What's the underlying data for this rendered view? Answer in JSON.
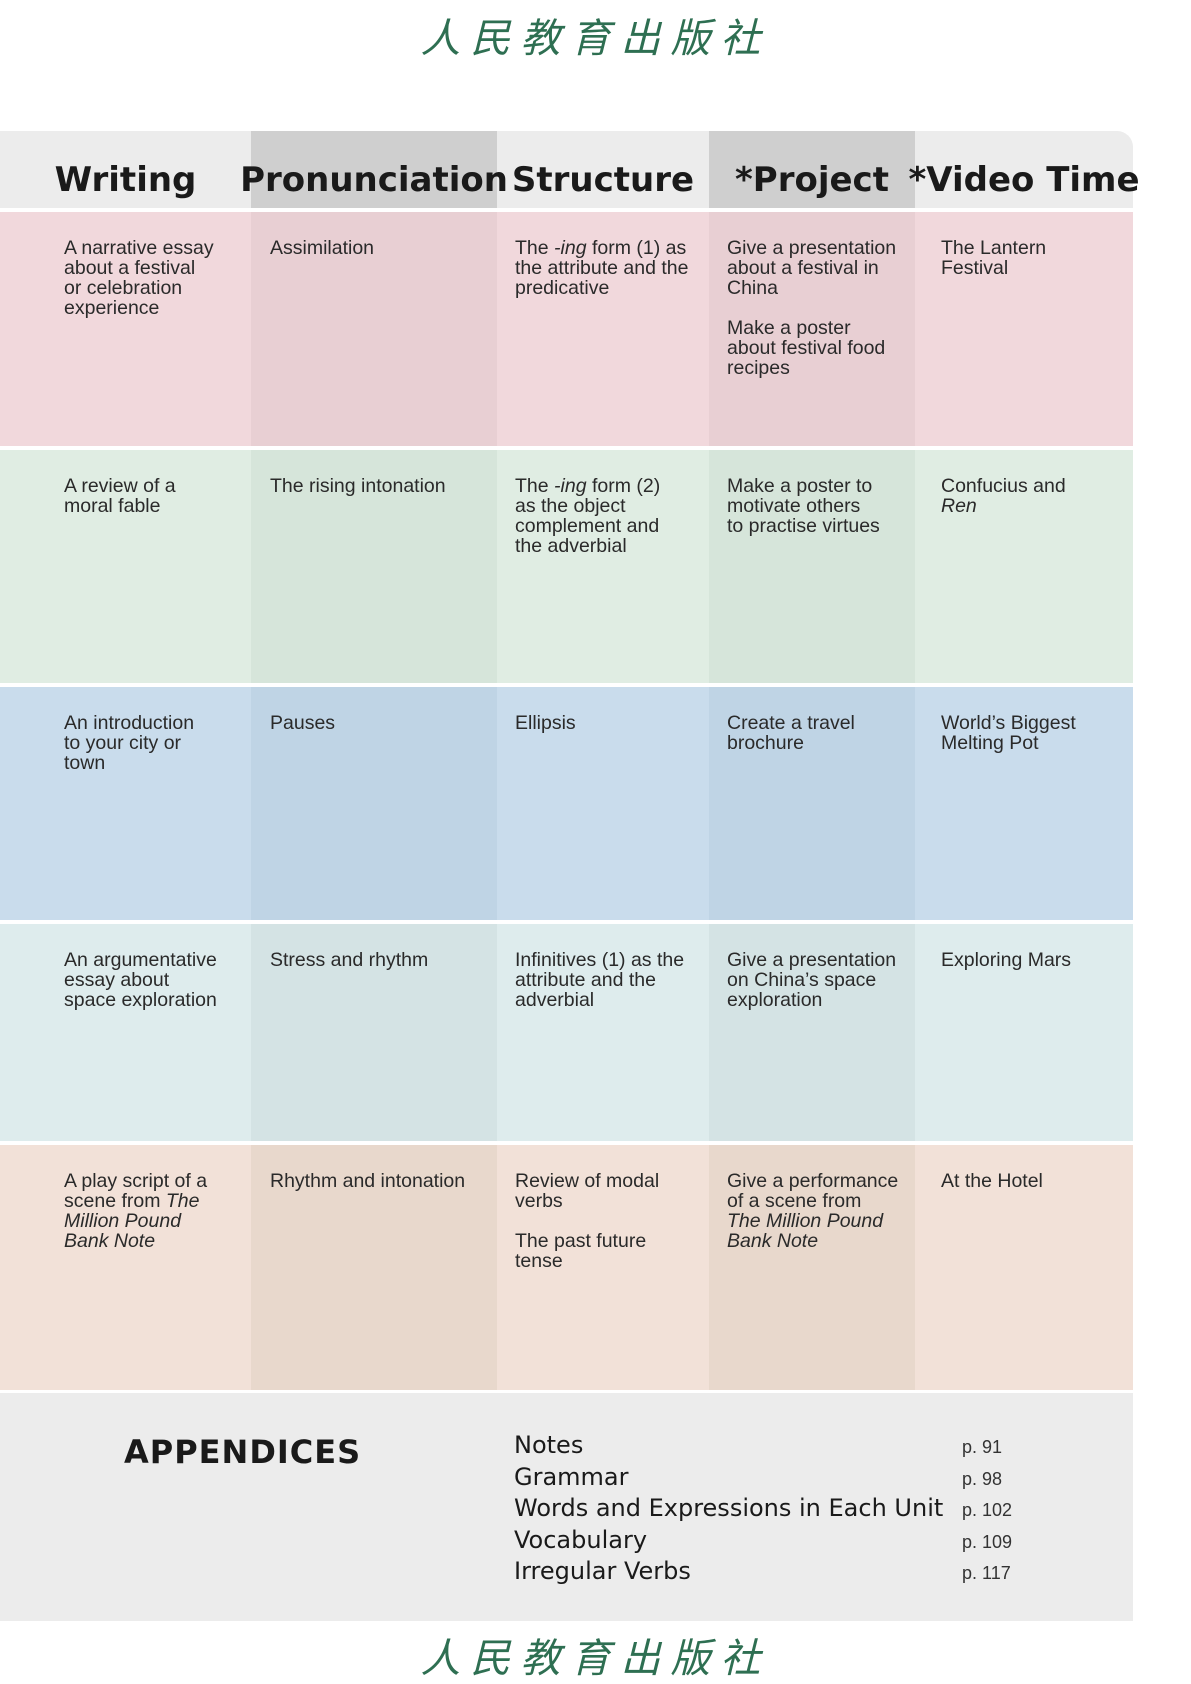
{
  "logo_text": "人民教育出版社",
  "header": [
    "Writing",
    "Pronunciation",
    "Structure",
    "*Project",
    "*Video Time"
  ],
  "colors": {
    "rows": [
      [
        "#f1d8dc",
        "#e8cfd3",
        "#f1d8dc",
        "#e8cfd3",
        "#f1d8dc"
      ],
      [
        "#e0ede3",
        "#d6e5da",
        "#e0ede3",
        "#d6e5da",
        "#e0ede3"
      ],
      [
        "#c9dcec",
        "#bfd4e5",
        "#c9dcec",
        "#bfd4e5",
        "#c9dcec"
      ],
      [
        "#deeced",
        "#d4e3e4",
        "#deeced",
        "#d4e3e4",
        "#deeced"
      ],
      [
        "#f2e1d8",
        "#e8d8cc",
        "#f2e1d8",
        "#e8d8cc",
        "#f2e1d8"
      ]
    ]
  },
  "rows": [
    {
      "cells": [
        [
          [
            {
              "t": "A narrative essay"
            }
          ],
          [
            {
              "t": "about a festival"
            }
          ],
          [
            {
              "t": "or celebration"
            }
          ],
          [
            {
              "t": "experience"
            }
          ]
        ],
        [
          [
            {
              "t": "Assimilation"
            }
          ]
        ],
        [
          [
            {
              "t": "The "
            },
            {
              "t": "-ing",
              "i": true
            },
            {
              "t": " form (1) as"
            }
          ],
          [
            {
              "t": "the attribute and the"
            }
          ],
          [
            {
              "t": "predicative"
            }
          ]
        ],
        [
          [
            {
              "t": "Give a presentation"
            }
          ],
          [
            {
              "t": "about a festival in"
            }
          ],
          [
            {
              "t": "China"
            }
          ],
          "gap",
          [
            {
              "t": "Make a poster"
            }
          ],
          [
            {
              "t": "about festival food"
            }
          ],
          [
            {
              "t": "recipes"
            }
          ]
        ],
        [
          [
            {
              "t": "The Lantern"
            }
          ],
          [
            {
              "t": "Festival"
            }
          ]
        ]
      ]
    },
    {
      "cells": [
        [
          [
            {
              "t": "A review of a"
            }
          ],
          [
            {
              "t": "moral fable"
            }
          ]
        ],
        [
          [
            {
              "t": "The rising intonation"
            }
          ]
        ],
        [
          [
            {
              "t": "The "
            },
            {
              "t": "-ing",
              "i": true
            },
            {
              "t": " form (2)"
            }
          ],
          [
            {
              "t": "as the object"
            }
          ],
          [
            {
              "t": "complement and"
            }
          ],
          [
            {
              "t": "the adverbial"
            }
          ]
        ],
        [
          [
            {
              "t": "Make a poster to"
            }
          ],
          [
            {
              "t": "motivate others"
            }
          ],
          [
            {
              "t": "to practise virtues"
            }
          ]
        ],
        [
          [
            {
              "t": "Confucius and"
            }
          ],
          [
            {
              "t": "Ren",
              "i": true
            }
          ]
        ]
      ]
    },
    {
      "cells": [
        [
          [
            {
              "t": "An introduction"
            }
          ],
          [
            {
              "t": "to your city or"
            }
          ],
          [
            {
              "t": "town"
            }
          ]
        ],
        [
          [
            {
              "t": "Pauses"
            }
          ]
        ],
        [
          [
            {
              "t": "Ellipsis"
            }
          ]
        ],
        [
          [
            {
              "t": "Create a travel"
            }
          ],
          [
            {
              "t": "brochure"
            }
          ]
        ],
        [
          [
            {
              "t": "World’s Biggest"
            }
          ],
          [
            {
              "t": "Melting Pot"
            }
          ]
        ]
      ]
    },
    {
      "cells": [
        [
          [
            {
              "t": "An argumentative"
            }
          ],
          [
            {
              "t": "essay about"
            }
          ],
          [
            {
              "t": "space exploration"
            }
          ]
        ],
        [
          [
            {
              "t": "Stress and rhythm"
            }
          ]
        ],
        [
          [
            {
              "t": "Infinitives (1) as the"
            }
          ],
          [
            {
              "t": "attribute and the"
            }
          ],
          [
            {
              "t": "adverbial"
            }
          ]
        ],
        [
          [
            {
              "t": "Give a presentation"
            }
          ],
          [
            {
              "t": "on China’s space"
            }
          ],
          [
            {
              "t": "exploration"
            }
          ]
        ],
        [
          [
            {
              "t": "Exploring Mars"
            }
          ]
        ]
      ]
    },
    {
      "cells": [
        [
          [
            {
              "t": "A play script of a"
            }
          ],
          [
            {
              "t": "scene from "
            },
            {
              "t": "The",
              "i": true
            }
          ],
          [
            {
              "t": "Million Pound",
              "i": true
            }
          ],
          [
            {
              "t": "Bank Note",
              "i": true
            }
          ]
        ],
        [
          [
            {
              "t": "Rhythm and intonation"
            }
          ]
        ],
        [
          [
            {
              "t": "Review of modal"
            }
          ],
          [
            {
              "t": "verbs"
            }
          ],
          "gap",
          [
            {
              "t": "The past future"
            }
          ],
          [
            {
              "t": "tense"
            }
          ]
        ],
        [
          [
            {
              "t": "Give a performance"
            }
          ],
          [
            {
              "t": "of a scene from"
            }
          ],
          [
            {
              "t": "The Million Pound",
              "i": true
            }
          ],
          [
            {
              "t": "Bank Note",
              "i": true
            }
          ]
        ],
        [
          [
            {
              "t": "At the Hotel"
            }
          ]
        ]
      ]
    }
  ],
  "appendices": {
    "title": "APPENDICES",
    "items": [
      {
        "name": "Notes",
        "page": "p. 91"
      },
      {
        "name": "Grammar",
        "page": "p. 98"
      },
      {
        "name": "Words and Expressions in Each Unit",
        "page": "p. 102"
      },
      {
        "name": "Vocabulary",
        "page": "p. 109"
      },
      {
        "name": "Irregular Verbs",
        "page": "p. 117"
      }
    ]
  }
}
